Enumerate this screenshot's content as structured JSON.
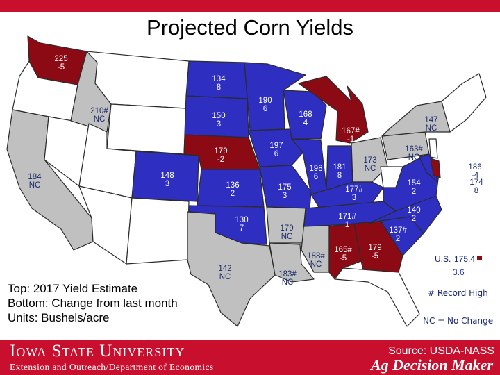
{
  "title": "Projected Corn Yields",
  "colors": {
    "record_high": "#8b0a14",
    "no_change": "#c0c0c0",
    "increase": "#2e2ec0",
    "decrease": "#8b0a14",
    "other": "#ffffff",
    "brand_red": "#c8102e"
  },
  "states": [
    {
      "state": "WA",
      "top": "225",
      "bottom": "-5",
      "category": "decrease"
    },
    {
      "state": "ID",
      "top": "210#",
      "bottom": "NC",
      "category": "no_change"
    },
    {
      "state": "CA",
      "top": "184",
      "bottom": "NC",
      "category": "no_change"
    },
    {
      "state": "ND",
      "top": "134",
      "bottom": "8",
      "category": "increase"
    },
    {
      "state": "SD",
      "top": "150",
      "bottom": "3",
      "category": "increase"
    },
    {
      "state": "NE",
      "top": "179",
      "bottom": "-2",
      "category": "decrease"
    },
    {
      "state": "CO",
      "top": "148",
      "bottom": "3",
      "category": "increase"
    },
    {
      "state": "KS",
      "top": "136",
      "bottom": "2",
      "category": "increase"
    },
    {
      "state": "OK",
      "top": "130",
      "bottom": "7",
      "category": "increase"
    },
    {
      "state": "TX",
      "top": "142",
      "bottom": "NC",
      "category": "no_change"
    },
    {
      "state": "MN",
      "top": "190",
      "bottom": "6",
      "category": "increase"
    },
    {
      "state": "IA",
      "top": "197",
      "bottom": "6",
      "category": "increase"
    },
    {
      "state": "MO",
      "top": "175",
      "bottom": "3",
      "category": "increase"
    },
    {
      "state": "AR",
      "top": "179",
      "bottom": "NC",
      "category": "no_change"
    },
    {
      "state": "LA",
      "top": "183#",
      "bottom": "NC",
      "category": "no_change"
    },
    {
      "state": "WI",
      "top": "168",
      "bottom": "4",
      "category": "increase"
    },
    {
      "state": "IL",
      "top": "198",
      "bottom": "6",
      "category": "increase"
    },
    {
      "state": "MS",
      "top": "188#",
      "bottom": "NC",
      "category": "no_change"
    },
    {
      "state": "MI",
      "top": "167#",
      "bottom": "-1",
      "category": "decrease"
    },
    {
      "state": "IN",
      "top": "181",
      "bottom": "8",
      "category": "increase"
    },
    {
      "state": "KY",
      "top": "177#",
      "bottom": "3",
      "category": "increase"
    },
    {
      "state": "TN",
      "top": "171#",
      "bottom": "1",
      "category": "increase"
    },
    {
      "state": "AL",
      "top": "165#",
      "bottom": "-5",
      "category": "decrease"
    },
    {
      "state": "GA",
      "top": "179",
      "bottom": "-5",
      "category": "decrease"
    },
    {
      "state": "OH",
      "top": "173",
      "bottom": "NC",
      "category": "no_change"
    },
    {
      "state": "NY",
      "top": "147",
      "bottom": "NC",
      "category": "no_change"
    },
    {
      "state": "PA",
      "top": "163#",
      "bottom": "NC",
      "category": "no_change"
    },
    {
      "state": "VA",
      "top": "154",
      "bottom": "2",
      "category": "increase"
    },
    {
      "state": "NC",
      "top": "140",
      "bottom": "2",
      "category": "increase"
    },
    {
      "state": "SC",
      "top": "137#",
      "bottom": "2",
      "category": "increase"
    },
    {
      "state": "DE",
      "top": "186",
      "bottom": "-4",
      "category": "decrease"
    },
    {
      "state": "MD",
      "top": "174",
      "bottom": "8",
      "category": "increase"
    }
  ],
  "us": {
    "label": "U.S.",
    "top": "175.4",
    "bottom": "3.6"
  },
  "key": {
    "record_high": "# Record High",
    "no_change": "NC = No Change"
  },
  "legend": {
    "line1": "Top: 2017 Yield Estimate",
    "line2": "Bottom: Change from last month",
    "line3": "Units: Bushels/acre"
  },
  "footer": {
    "university": "Iowa State University",
    "extension": "Extension and Outreach/Department of Economics",
    "source": "Source: USDA-NASS",
    "brand": "Ag Decision Maker"
  }
}
